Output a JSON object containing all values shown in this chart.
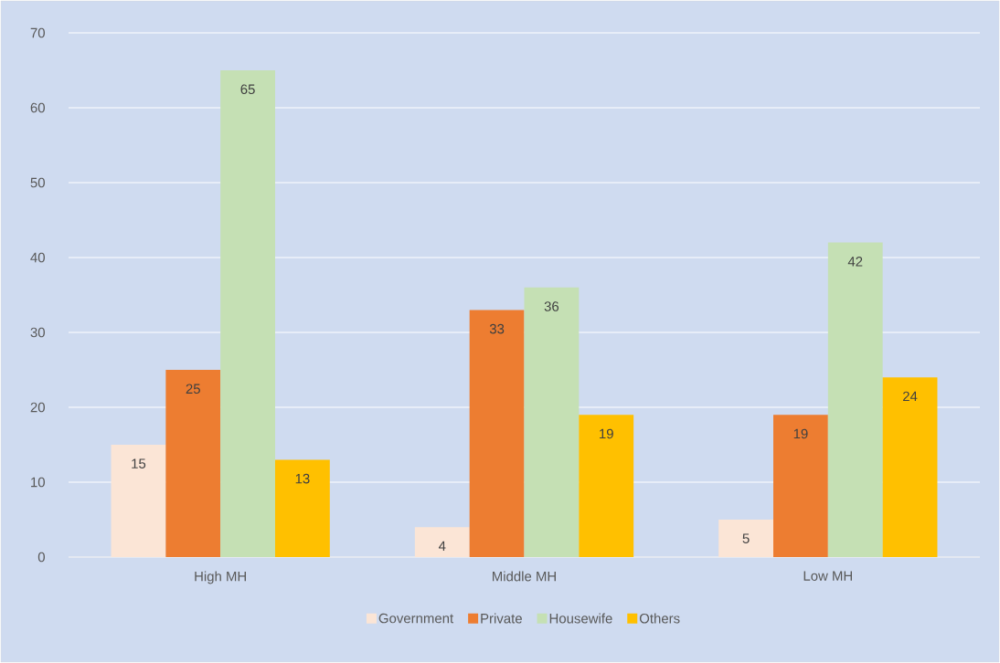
{
  "chart_data": {
    "type": "bar",
    "categories": [
      "High MH",
      "Middle MH",
      "Low MH"
    ],
    "series": [
      {
        "name": "Government",
        "color": "#fbe5d6",
        "values": [
          15,
          4,
          5
        ]
      },
      {
        "name": "Private",
        "color": "#ed7d31",
        "values": [
          25,
          33,
          19
        ]
      },
      {
        "name": "Housewife",
        "color": "#c5e0b4",
        "values": [
          65,
          36,
          42
        ]
      },
      {
        "name": "Others",
        "color": "#ffc000",
        "values": [
          13,
          19,
          24
        ]
      }
    ],
    "ylim": [
      0,
      70
    ],
    "yticks": [
      0,
      10,
      20,
      30,
      40,
      50,
      60,
      70
    ],
    "grid": "y",
    "legend": "bottom",
    "data_labels": true
  }
}
